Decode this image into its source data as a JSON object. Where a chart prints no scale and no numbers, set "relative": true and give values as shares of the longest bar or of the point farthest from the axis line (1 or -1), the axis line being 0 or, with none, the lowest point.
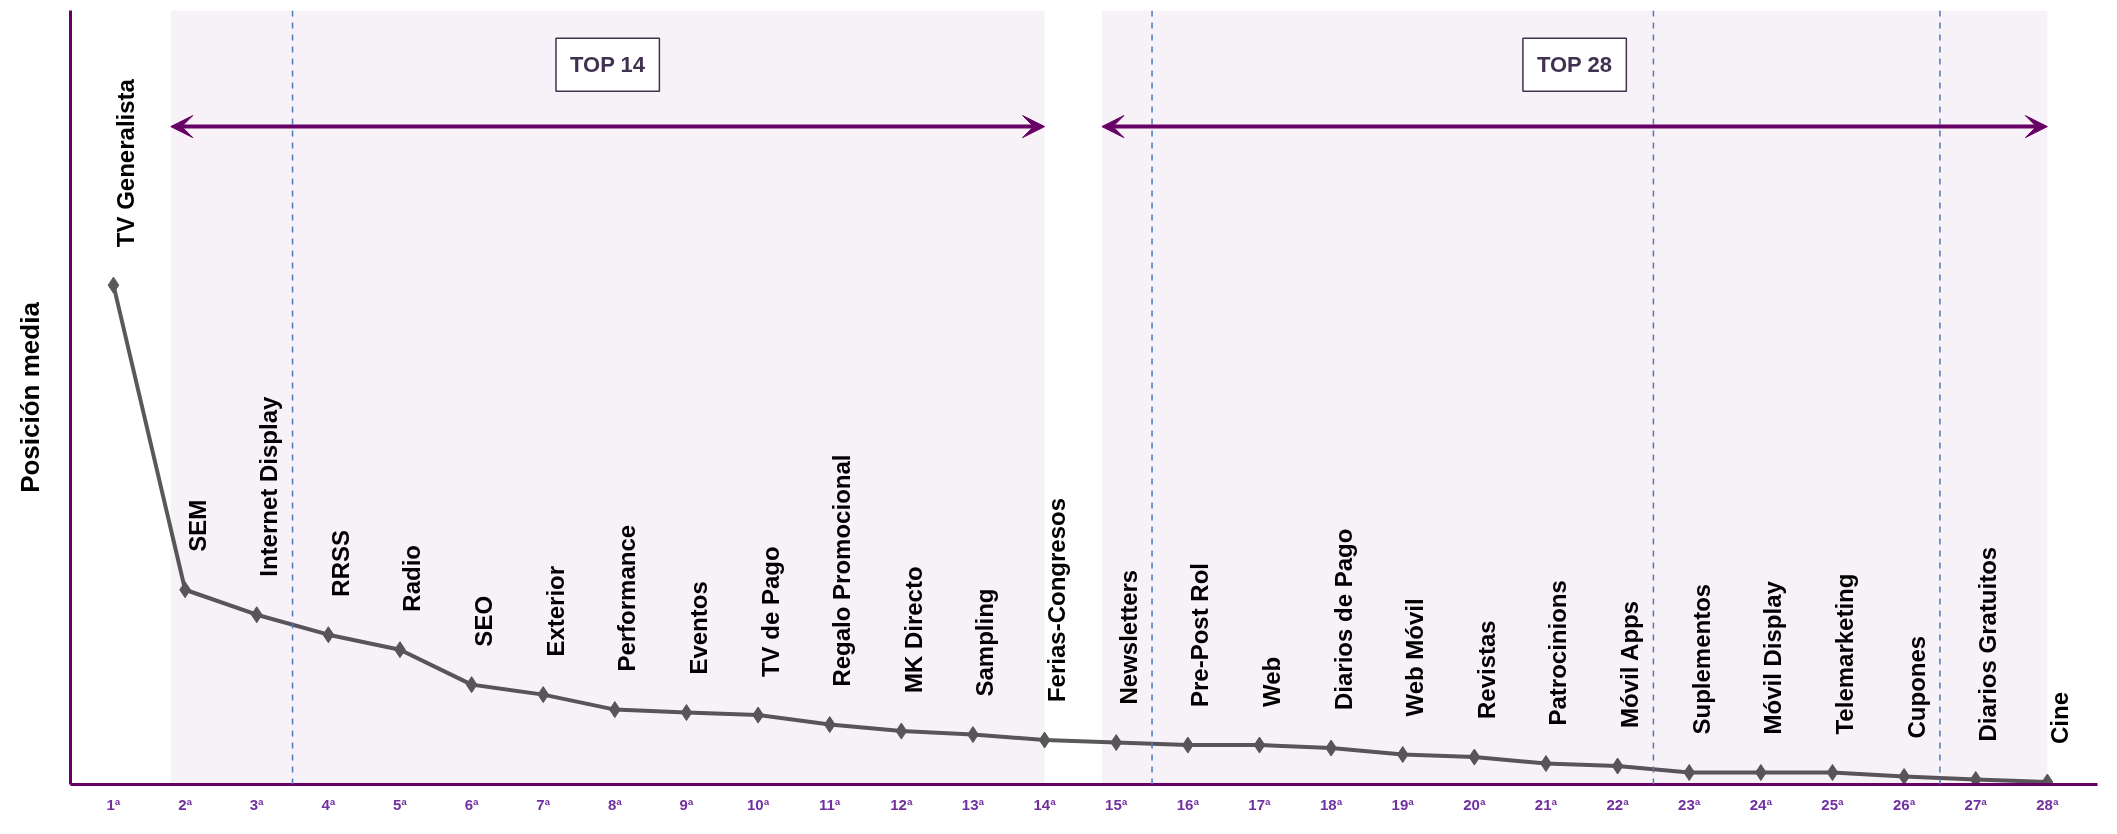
{
  "chart_data": {
    "type": "line",
    "relative": true,
    "ylabel": "Posición media",
    "x": [
      1,
      2,
      3,
      4,
      5,
      6,
      7,
      8,
      9,
      10,
      11,
      12,
      13,
      14,
      15,
      16,
      17,
      18,
      19,
      20,
      21,
      22,
      23,
      24,
      25,
      26,
      27,
      28
    ],
    "xlim": [
      0.4,
      28.7
    ],
    "xticks": [
      {
        "value": 1,
        "label": "1ª"
      },
      {
        "value": 2,
        "label": "2ª"
      },
      {
        "value": 3,
        "label": "3ª"
      },
      {
        "value": 4,
        "label": "4ª"
      },
      {
        "value": 5,
        "label": "5ª"
      },
      {
        "value": 6,
        "label": "6ª"
      },
      {
        "value": 7,
        "label": "7ª"
      },
      {
        "value": 8,
        "label": "8ª"
      },
      {
        "value": 9,
        "label": "9ª"
      },
      {
        "value": 10,
        "label": "10ª"
      },
      {
        "value": 11,
        "label": "11ª"
      },
      {
        "value": 12,
        "label": "12ª"
      },
      {
        "value": 13,
        "label": "13ª"
      },
      {
        "value": 14,
        "label": "14ª"
      },
      {
        "value": 15,
        "label": "15ª"
      },
      {
        "value": 16,
        "label": "16ª"
      },
      {
        "value": 17,
        "label": "17ª"
      },
      {
        "value": 18,
        "label": "18ª"
      },
      {
        "value": 19,
        "label": "19ª"
      },
      {
        "value": 20,
        "label": "20ª"
      },
      {
        "value": 21,
        "label": "21ª"
      },
      {
        "value": 22,
        "label": "22ª"
      },
      {
        "value": 23,
        "label": "23ª"
      },
      {
        "value": 24,
        "label": "24ª"
      },
      {
        "value": 25,
        "label": "25ª"
      },
      {
        "value": 26,
        "label": "26ª"
      },
      {
        "value": 27,
        "label": "27ª"
      },
      {
        "value": 28,
        "label": "28ª"
      }
    ],
    "series": [
      {
        "color": "#595959",
        "values": [
          1.0,
          0.39,
          0.34,
          0.3,
          0.27,
          0.2,
          0.18,
          0.15,
          0.144,
          0.139,
          0.12,
          0.107,
          0.1,
          0.089,
          0.084,
          0.079,
          0.079,
          0.073,
          0.06,
          0.055,
          0.042,
          0.037,
          0.024,
          0.024,
          0.024,
          0.016,
          0.01,
          0.005
        ]
      }
    ],
    "marker": "diamond",
    "line_style": "solid",
    "grid": false,
    "annotations": [
      {
        "text": "TV Generalista",
        "x": 1,
        "y": 1.0
      },
      {
        "text": "SEM",
        "x": 2,
        "y": 0.39
      },
      {
        "text": "Internet Display",
        "x": 3,
        "y": 0.34
      },
      {
        "text": "RRSS",
        "x": 4,
        "y": 0.3
      },
      {
        "text": "Radio",
        "x": 5,
        "y": 0.27
      },
      {
        "text": "SEO",
        "x": 6,
        "y": 0.2
      },
      {
        "text": "Exterior",
        "x": 7,
        "y": 0.18
      },
      {
        "text": "Performance",
        "x": 8,
        "y": 0.15
      },
      {
        "text": "Eventos",
        "x": 9,
        "y": 0.144
      },
      {
        "text": "TV de Pago",
        "x": 10,
        "y": 0.139
      },
      {
        "text": "Regalo Promocional",
        "x": 11,
        "y": 0.12
      },
      {
        "text": "MK Directo",
        "x": 12,
        "y": 0.107
      },
      {
        "text": "Sampling",
        "x": 13,
        "y": 0.1
      },
      {
        "text": "Ferias-Congresos",
        "x": 14,
        "y": 0.089
      },
      {
        "text": "Newsletters",
        "x": 15,
        "y": 0.084
      },
      {
        "text": "Pre-Post Rol",
        "x": 16,
        "y": 0.079
      },
      {
        "text": "Web",
        "x": 17,
        "y": 0.079
      },
      {
        "text": "Diarios de Pago",
        "x": 18,
        "y": 0.073
      },
      {
        "text": "Web Móvil",
        "x": 19,
        "y": 0.06
      },
      {
        "text": "Revistas",
        "x": 20,
        "y": 0.055
      },
      {
        "text": "Patrocinions",
        "x": 21,
        "y": 0.042
      },
      {
        "text": "Móvil Apps",
        "x": 22,
        "y": 0.037
      },
      {
        "text": "Suplementos",
        "x": 23,
        "y": 0.024
      },
      {
        "text": "Móvil Display",
        "x": 24,
        "y": 0.024
      },
      {
        "text": "Telemarketing",
        "x": 25,
        "y": 0.024
      },
      {
        "text": "Cupones",
        "x": 26,
        "y": 0.016
      },
      {
        "text": "Diarios Gratuitos",
        "x": 27,
        "y": 0.01
      },
      {
        "text": "Cine",
        "x": 28,
        "y": 0.005
      }
    ],
    "ref_lines": [
      {
        "axis": "x",
        "value": 3.5,
        "color": "#4f81bd",
        "line_style": "dashed"
      },
      {
        "axis": "x",
        "value": 15.5,
        "color": "#4f81bd",
        "line_style": "dashed"
      },
      {
        "axis": "x",
        "value": 22.5,
        "color": "#4f81bd",
        "line_style": "dashed"
      },
      {
        "axis": "x",
        "value": 26.5,
        "color": "#4f81bd",
        "line_style": "dashed"
      }
    ],
    "bands": [
      {
        "axis": "x",
        "from": 1.8,
        "to": 14,
        "label": "TOP 14",
        "color": "#660066"
      },
      {
        "axis": "x",
        "from": 14.8,
        "to": 28,
        "label": "TOP 28",
        "color": "#660066"
      }
    ]
  }
}
